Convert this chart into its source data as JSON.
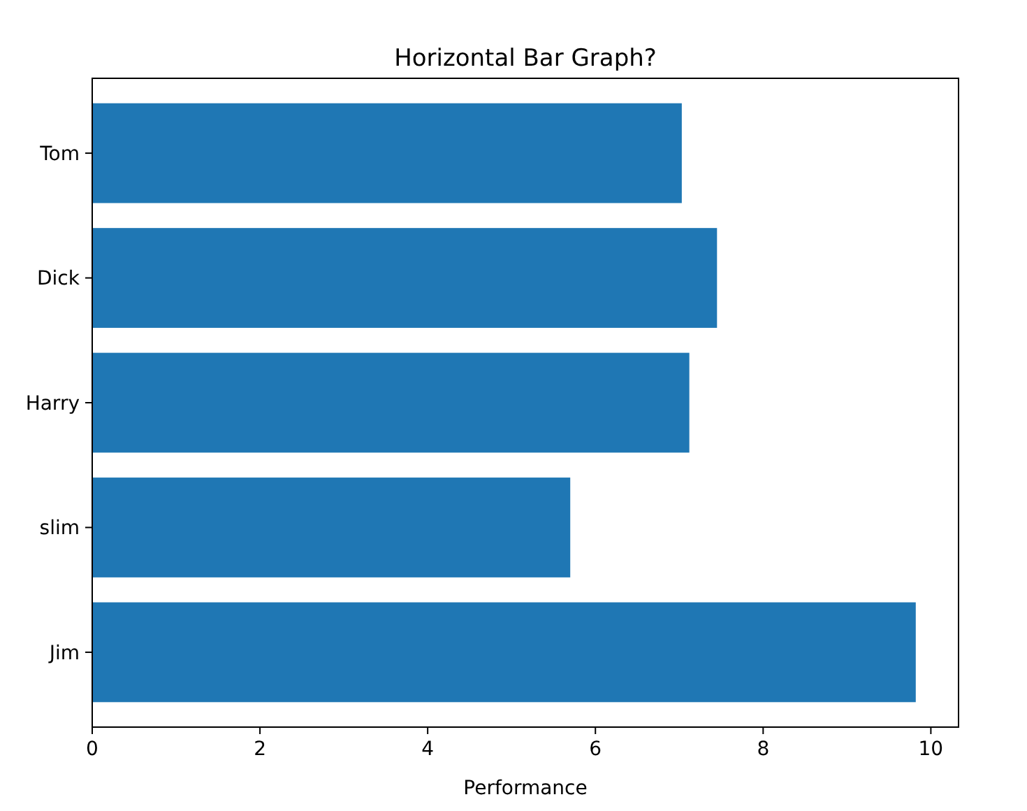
{
  "chart_data": {
    "type": "bar",
    "orientation": "horizontal",
    "title": "Horizontal Bar Graph?",
    "xlabel": "Performance",
    "categories": [
      "Tom",
      "Dick",
      "Harry",
      "slim",
      "Jim"
    ],
    "values": [
      7.03,
      7.45,
      7.12,
      5.7,
      9.82
    ],
    "color": "#1f77b4",
    "xlim": [
      0,
      10.33
    ],
    "xticks": [
      0,
      2,
      4,
      6,
      8,
      10
    ],
    "grid": false
  }
}
